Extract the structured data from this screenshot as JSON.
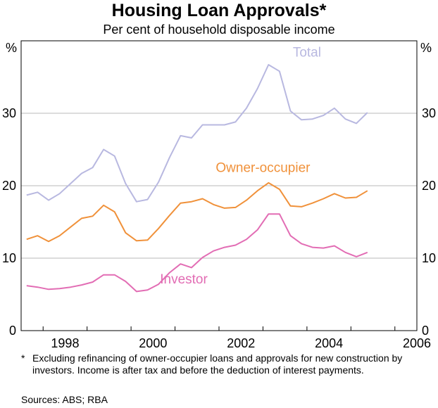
{
  "title": "Housing Loan Approvals*",
  "subtitle": "Per cent of household disposable income",
  "chart_data": {
    "type": "line",
    "title": "Housing Loan Approvals*",
    "subtitle": "Per cent of household disposable income",
    "ylabel_left": "%",
    "ylabel_right": "%",
    "ylim": [
      0,
      40
    ],
    "yticks": [
      0,
      10,
      20,
      30
    ],
    "xlim": [
      1997.5,
      2006.5
    ],
    "xticks": [
      1998,
      2000,
      2002,
      2004,
      2006
    ],
    "grid": true,
    "x": [
      1997.625,
      1997.875,
      1998.125,
      1998.375,
      1998.625,
      1998.875,
      1999.125,
      1999.375,
      1999.625,
      1999.875,
      2000.125,
      2000.375,
      2000.625,
      2000.875,
      2001.125,
      2001.375,
      2001.625,
      2001.875,
      2002.125,
      2002.375,
      2002.625,
      2002.875,
      2003.125,
      2003.375,
      2003.625,
      2003.875,
      2004.125,
      2004.375,
      2004.625,
      2004.875,
      2005.125,
      2005.375,
      2005.625
    ],
    "series": [
      {
        "name": "Total",
        "color": "#b8b8e0",
        "values": [
          18.7,
          19.1,
          18.0,
          18.9,
          20.3,
          21.7,
          22.5,
          25.0,
          24.1,
          20.3,
          17.8,
          18.1,
          20.5,
          23.9,
          26.9,
          26.6,
          28.4,
          28.4,
          28.4,
          28.8,
          30.7,
          33.4,
          36.7,
          35.8,
          30.3,
          29.1,
          29.2,
          29.7,
          30.7,
          29.2,
          28.6,
          30.1,
          null
        ]
      },
      {
        "name": "Owner-occupier",
        "color": "#f0913a",
        "values": [
          12.6,
          13.1,
          12.3,
          13.1,
          14.3,
          15.5,
          15.8,
          17.3,
          16.4,
          13.5,
          12.4,
          12.5,
          14.1,
          15.9,
          17.6,
          17.8,
          18.2,
          17.4,
          16.9,
          17.0,
          18.0,
          19.3,
          20.4,
          19.5,
          17.2,
          17.1,
          17.6,
          18.2,
          18.9,
          18.3,
          18.4,
          19.3,
          null
        ]
      },
      {
        "name": "Investor",
        "color": "#e26db4",
        "values": [
          6.2,
          6.0,
          5.7,
          5.8,
          6.0,
          6.3,
          6.7,
          7.7,
          7.7,
          6.8,
          5.4,
          5.6,
          6.4,
          8.0,
          9.2,
          8.7,
          10.1,
          11.0,
          11.5,
          11.8,
          12.6,
          13.9,
          16.1,
          16.1,
          13.1,
          12.0,
          11.5,
          11.4,
          11.7,
          10.8,
          10.2,
          10.8,
          null
        ]
      }
    ],
    "annotations": [
      "Total",
      "Owner-occupier",
      "Investor"
    ]
  },
  "footnote": {
    "marker": "*",
    "text": "Excluding refinancing of owner-occupier loans and approvals for new construction by investors. Income is after tax and before the deduction of interest payments."
  },
  "sources": "Sources: ABS; RBA"
}
